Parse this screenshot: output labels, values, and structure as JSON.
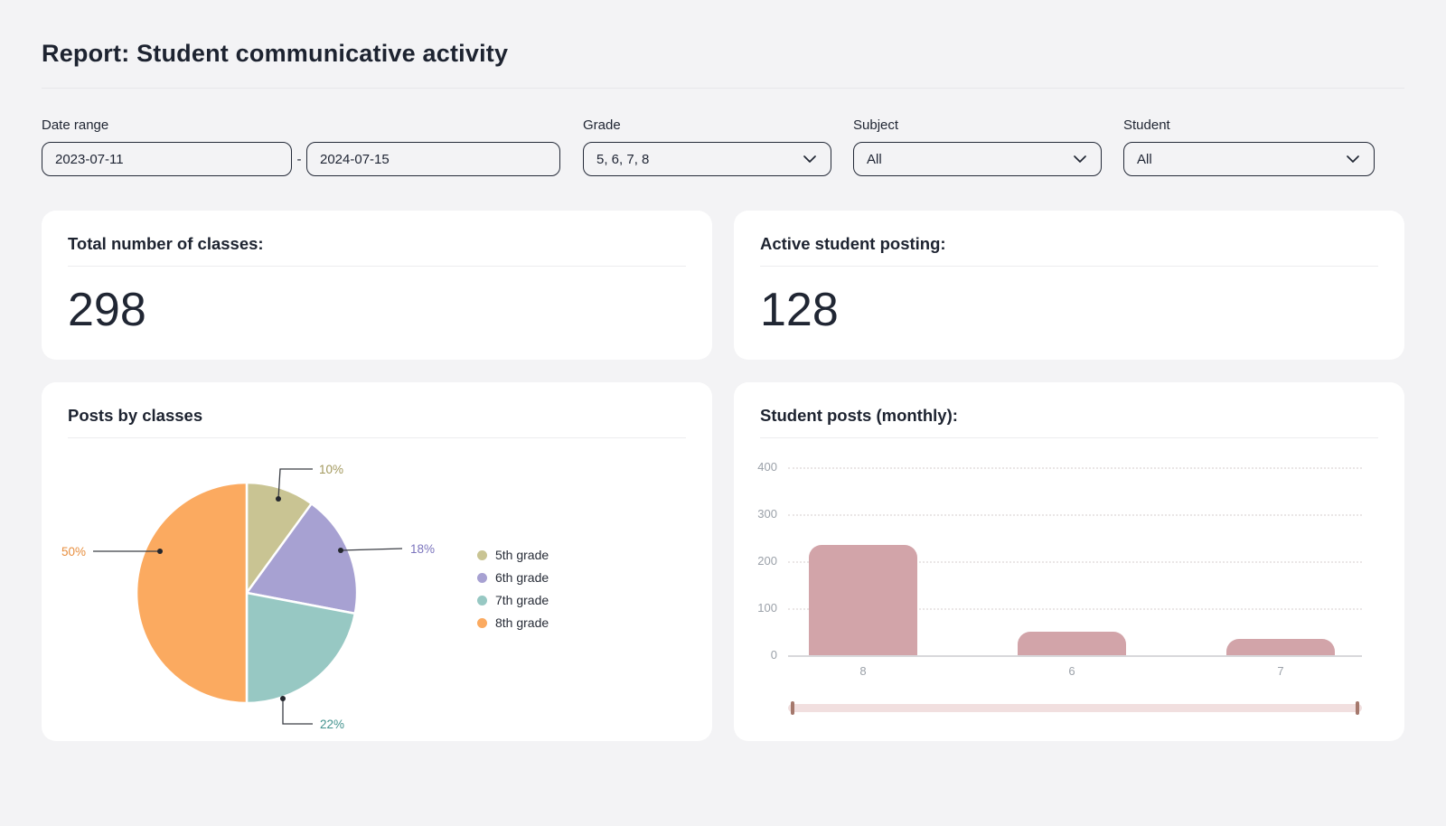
{
  "page": {
    "title": "Report: Student communicative activity"
  },
  "filters": {
    "date_range": {
      "label": "Date range",
      "from": "2023-07-11",
      "to": "2024-07-15",
      "separator": "-"
    },
    "grade": {
      "label": "Grade",
      "value": "5, 6, 7, 8"
    },
    "subject": {
      "label": "Subject",
      "value": "All"
    },
    "student": {
      "label": "Student",
      "value": "All"
    }
  },
  "stats": [
    {
      "title": "Total number of classes:",
      "value": "298"
    },
    {
      "title": "Active student posting:",
      "value": "128"
    }
  ],
  "chart_data": [
    {
      "type": "pie",
      "title": "Posts by classes",
      "categories": [
        "5th grade",
        "6th grade",
        "7th grade",
        "8th grade"
      ],
      "values": [
        10,
        18,
        22,
        50
      ],
      "unit": "%",
      "colors": [
        "#c9c493",
        "#a7a1d2",
        "#97c8c3",
        "#fbaa60"
      ],
      "label_colors": [
        "#a2985c",
        "#7b74bd",
        "#43938e",
        "#e78e3e"
      ],
      "legend_position": "right"
    },
    {
      "type": "bar",
      "title": "Student posts (monthly):",
      "categories": [
        "8",
        "6",
        "7"
      ],
      "values": [
        235,
        50,
        35
      ],
      "ylim": [
        0,
        400
      ],
      "yticks": [
        0,
        100,
        200,
        300,
        400
      ],
      "bar_color": "#d2a4a9",
      "grid": "horizontal-dotted",
      "has_horizontal_scrollbar": true
    }
  ]
}
